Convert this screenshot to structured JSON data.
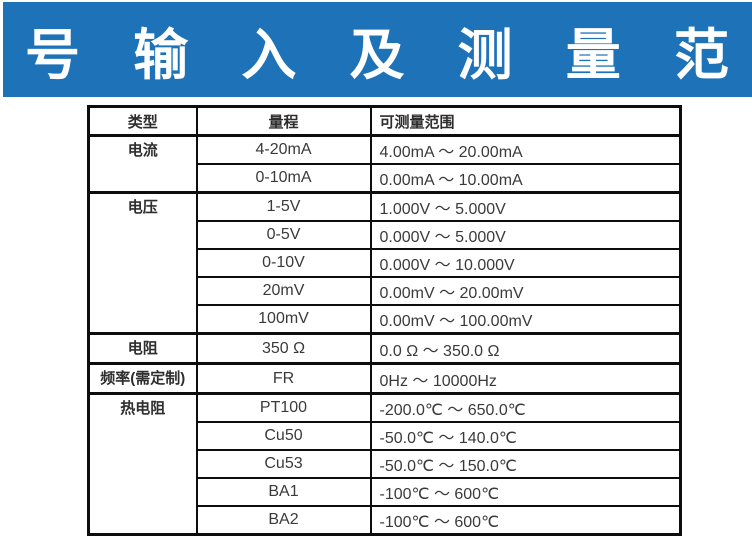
{
  "title": "信 号 输 入 及 测 量 范 围",
  "colors": {
    "banner_blue": "#1d72b8",
    "banner_text": "#ffffff",
    "border": "#0d0d0d",
    "table_text": "#3a3a3a"
  },
  "table": {
    "headers": [
      "类型",
      "量程",
      "可测量范围"
    ],
    "rows": [
      {
        "type": "电流",
        "range": "4-20mA",
        "measure": "4.00mA ～ 20.00mA"
      },
      {
        "range": "0-10mA",
        "measure": "0.00mA ～ 10.00mA"
      },
      {
        "type": "电压",
        "range": "1-5V",
        "measure": "1.000V ～ 5.000V"
      },
      {
        "range": "0-5V",
        "measure": "0.000V ～ 5.000V"
      },
      {
        "range": "0-10V",
        "measure": "0.000V ～ 10.000V"
      },
      {
        "range": "20mV",
        "measure": "0.00mV ～ 20.00mV"
      },
      {
        "range": "100mV",
        "measure": "0.00mV ～ 100.00mV"
      },
      {
        "type": "电阻",
        "range": "350 Ω",
        "measure": "0.0 Ω ～ 350.0 Ω"
      },
      {
        "type": "频率(需定制)",
        "range": "FR",
        "measure": "0Hz ～ 10000Hz"
      },
      {
        "type": "热电阻",
        "range": "PT100",
        "measure": "-200.0℃ ～ 650.0℃"
      },
      {
        "range": "Cu50",
        "measure": "-50.0℃ ～ 140.0℃"
      },
      {
        "range": "Cu53",
        "measure": "-50.0℃ ～ 150.0℃"
      },
      {
        "range": "BA1",
        "measure": "-100℃ ～ 600℃"
      },
      {
        "range": "BA2",
        "measure": "-100℃ ～ 600℃"
      }
    ]
  }
}
